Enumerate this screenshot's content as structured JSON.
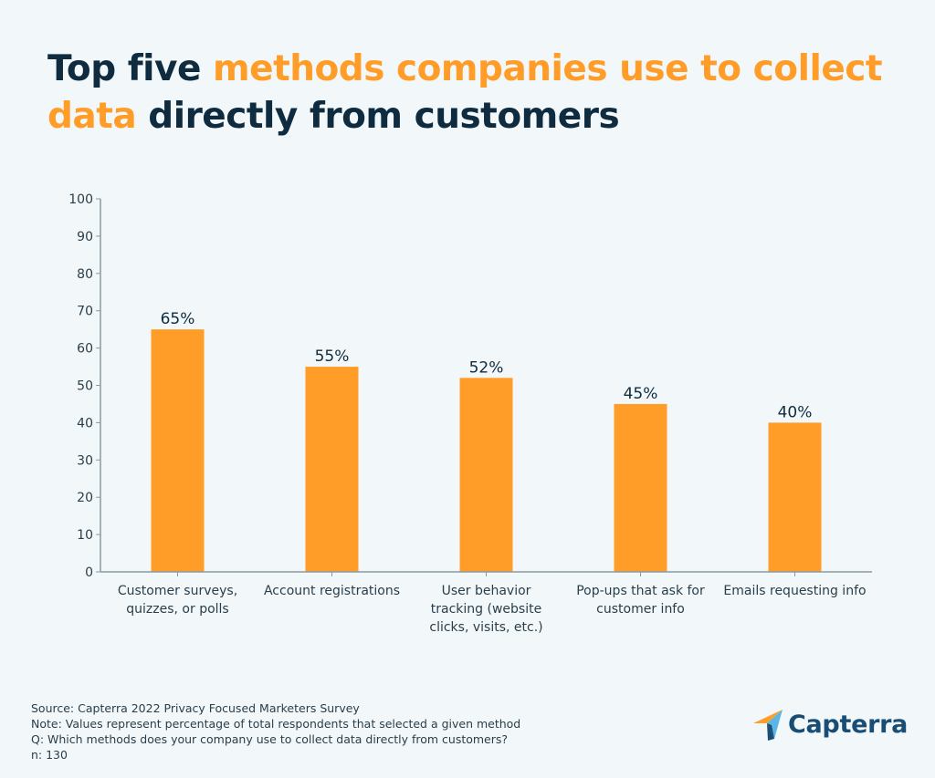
{
  "title": {
    "part1": "Top five ",
    "part2": "methods companies use to collect data",
    "part3": " directly from customers"
  },
  "colors": {
    "title_dark": "#0f2b3f",
    "accent": "#ff9d28",
    "bar": "#ff9d28",
    "text": "#2a3d4a",
    "axis": "#8a9aa3",
    "background": "#f2f8f9",
    "logo_blue": "#194d75",
    "logo_light_blue": "#5bb6e3"
  },
  "chart_data": {
    "type": "bar",
    "title": "Top five methods companies use to collect data directly from customers",
    "xlabel": "",
    "ylabel": "",
    "categories": [
      [
        "Customer surveys,",
        "quizzes, or polls"
      ],
      [
        "Account registrations"
      ],
      [
        "User behavior",
        "tracking (website",
        "clicks, visits, etc.)"
      ],
      [
        "Pop-ups that ask for",
        "customer info"
      ],
      [
        "Emails requesting info"
      ]
    ],
    "values": [
      65,
      55,
      52,
      45,
      40
    ],
    "data_labels": [
      "65%",
      "55%",
      "52%",
      "45%",
      "40%"
    ],
    "ylim": [
      0,
      100
    ],
    "yticks": [
      0,
      10,
      20,
      30,
      40,
      50,
      60,
      70,
      80,
      90,
      100
    ],
    "grid": false,
    "legend": "none"
  },
  "footer": {
    "source": "Source: Capterra 2022 Privacy Focused Marketers Survey",
    "note": "Note: Values represent percentage of total respondents that selected a given method",
    "question": "Q: Which methods does your company use to collect data directly from customers?",
    "n": "n: 130"
  },
  "logo": {
    "text": "Capterra",
    "icon": "capterra-arrow-icon"
  }
}
